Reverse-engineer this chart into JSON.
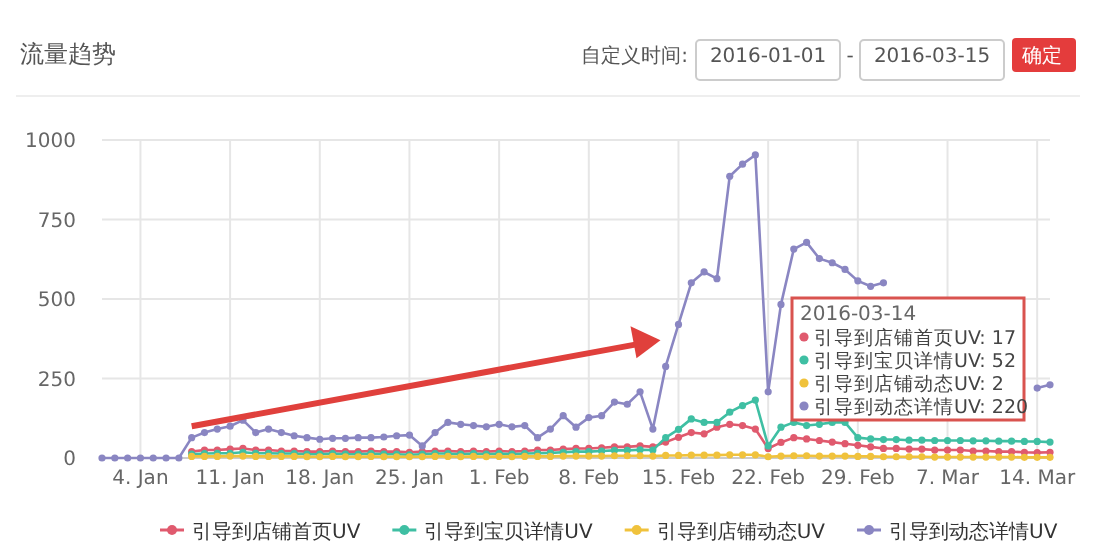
{
  "chart_data": {
    "type": "line",
    "title": "流量趋势",
    "x": [
      "2016-01-01",
      "2016-01-02",
      "2016-01-03",
      "2016-01-04",
      "2016-01-05",
      "2016-01-06",
      "2016-01-07",
      "2016-01-08",
      "2016-01-09",
      "2016-01-10",
      "2016-01-11",
      "2016-01-12",
      "2016-01-13",
      "2016-01-14",
      "2016-01-15",
      "2016-01-16",
      "2016-01-17",
      "2016-01-18",
      "2016-01-19",
      "2016-01-20",
      "2016-01-21",
      "2016-01-22",
      "2016-01-23",
      "2016-01-24",
      "2016-01-25",
      "2016-01-26",
      "2016-01-27",
      "2016-01-28",
      "2016-01-29",
      "2016-01-30",
      "2016-01-31",
      "2016-02-01",
      "2016-02-02",
      "2016-02-03",
      "2016-02-04",
      "2016-02-05",
      "2016-02-06",
      "2016-02-07",
      "2016-02-08",
      "2016-02-09",
      "2016-02-10",
      "2016-02-11",
      "2016-02-12",
      "2016-02-13",
      "2016-02-14",
      "2016-02-15",
      "2016-02-16",
      "2016-02-17",
      "2016-02-18",
      "2016-02-19",
      "2016-02-20",
      "2016-02-21",
      "2016-02-22",
      "2016-02-23",
      "2016-02-24",
      "2016-02-25",
      "2016-02-26",
      "2016-02-27",
      "2016-02-28",
      "2016-02-29",
      "2016-03-01",
      "2016-03-02",
      "2016-03-03",
      "2016-03-04",
      "2016-03-05",
      "2016-03-06",
      "2016-03-07",
      "2016-03-08",
      "2016-03-09",
      "2016-03-10",
      "2016-03-11",
      "2016-03-12",
      "2016-03-13",
      "2016-03-14",
      "2016-03-15"
    ],
    "series": [
      {
        "name": "引导到店铺首页UV",
        "color": "#e05a6e",
        "values": [
          null,
          null,
          null,
          null,
          null,
          null,
          null,
          20,
          25,
          25,
          28,
          30,
          25,
          25,
          22,
          22,
          20,
          20,
          22,
          20,
          20,
          22,
          20,
          20,
          18,
          20,
          22,
          22,
          20,
          22,
          20,
          22,
          20,
          22,
          25,
          25,
          28,
          30,
          30,
          32,
          35,
          35,
          38,
          35,
          50,
          65,
          80,
          76,
          97,
          106,
          102,
          91,
          30,
          49,
          64,
          60,
          55,
          50,
          45,
          40,
          35,
          30,
          30,
          28,
          28,
          25,
          25,
          25,
          22,
          22,
          20,
          20,
          18,
          17,
          18
        ]
      },
      {
        "name": "引导到宝贝详情UV",
        "color": "#3fbfa3",
        "values": [
          null,
          null,
          null,
          null,
          null,
          null,
          null,
          12,
          14,
          15,
          15,
          18,
          15,
          15,
          14,
          14,
          12,
          12,
          14,
          12,
          12,
          14,
          12,
          12,
          10,
          12,
          14,
          14,
          12,
          14,
          12,
          14,
          12,
          14,
          15,
          16,
          18,
          20,
          20,
          22,
          24,
          24,
          26,
          25,
          64,
          90,
          123,
          112,
          112,
          144,
          165,
          182,
          38,
          97,
          112,
          102,
          106,
          112,
          112,
          64,
          60,
          58,
          58,
          56,
          56,
          55,
          55,
          55,
          54,
          54,
          53,
          53,
          52,
          52,
          50
        ]
      },
      {
        "name": "引导到店铺动态UV",
        "color": "#f0c23c",
        "values": [
          null,
          null,
          null,
          null,
          null,
          null,
          null,
          5,
          5,
          5,
          6,
          6,
          5,
          5,
          5,
          5,
          4,
          4,
          5,
          4,
          4,
          5,
          4,
          4,
          4,
          4,
          5,
          5,
          4,
          5,
          4,
          5,
          4,
          5,
          5,
          5,
          6,
          6,
          6,
          6,
          7,
          7,
          7,
          6,
          8,
          8,
          9,
          9,
          9,
          10,
          10,
          10,
          4,
          6,
          7,
          7,
          6,
          6,
          6,
          5,
          5,
          4,
          4,
          4,
          4,
          3,
          3,
          3,
          3,
          3,
          3,
          3,
          2,
          2,
          2
        ]
      },
      {
        "name": "引导到动态详情UV",
        "color": "#8a86c2",
        "values": [
          0,
          0,
          0,
          0,
          0,
          0,
          0,
          64,
          80,
          91,
          100,
          119,
          80,
          91,
          80,
          70,
          64,
          59,
          62,
          62,
          64,
          64,
          66,
          70,
          72,
          38,
          80,
          112,
          106,
          102,
          98,
          106,
          98,
          102,
          64,
          91,
          133,
          97,
          127,
          133,
          176,
          169,
          208,
          91,
          288,
          420,
          551,
          585,
          564,
          886,
          924,
          953,
          208,
          483,
          657,
          678,
          627,
          614,
          593,
          557,
          540,
          551,
          null,
          null,
          null,
          null,
          null,
          null,
          null,
          null,
          null,
          null,
          null,
          220,
          230
        ]
      }
    ],
    "xlim": [
      "2016-01-01",
      "2016-03-15"
    ],
    "xticks": [
      {
        "value": "2016-01-04",
        "label": "4. Jan"
      },
      {
        "value": "2016-01-11",
        "label": "11. Jan"
      },
      {
        "value": "2016-01-18",
        "label": "18. Jan"
      },
      {
        "value": "2016-01-25",
        "label": "25. Jan"
      },
      {
        "value": "2016-02-01",
        "label": "1. Feb"
      },
      {
        "value": "2016-02-08",
        "label": "8. Feb"
      },
      {
        "value": "2016-02-15",
        "label": "15. Feb"
      },
      {
        "value": "2016-02-22",
        "label": "22. Feb"
      },
      {
        "value": "2016-02-29",
        "label": "29. Feb"
      },
      {
        "value": "2016-03-07",
        "label": "7. Mar"
      },
      {
        "value": "2016-03-14",
        "label": "14. Mar"
      }
    ],
    "ylim": [
      0,
      1000
    ],
    "yticks": [
      0,
      250,
      500,
      750,
      1000
    ],
    "grid": true,
    "legend": "bottom",
    "marker": "circle",
    "line_style": "solid",
    "annotations": [
      "自定义时间:",
      "2016-01-01",
      "-",
      "2016-03-15",
      "确定",
      "2016-03-14",
      "引导到店铺首页UV: 17",
      "引导到宝贝详情UV: 52",
      "引导到店铺动态UV: 2",
      "引导到动态详情UV: 220"
    ]
  }
}
